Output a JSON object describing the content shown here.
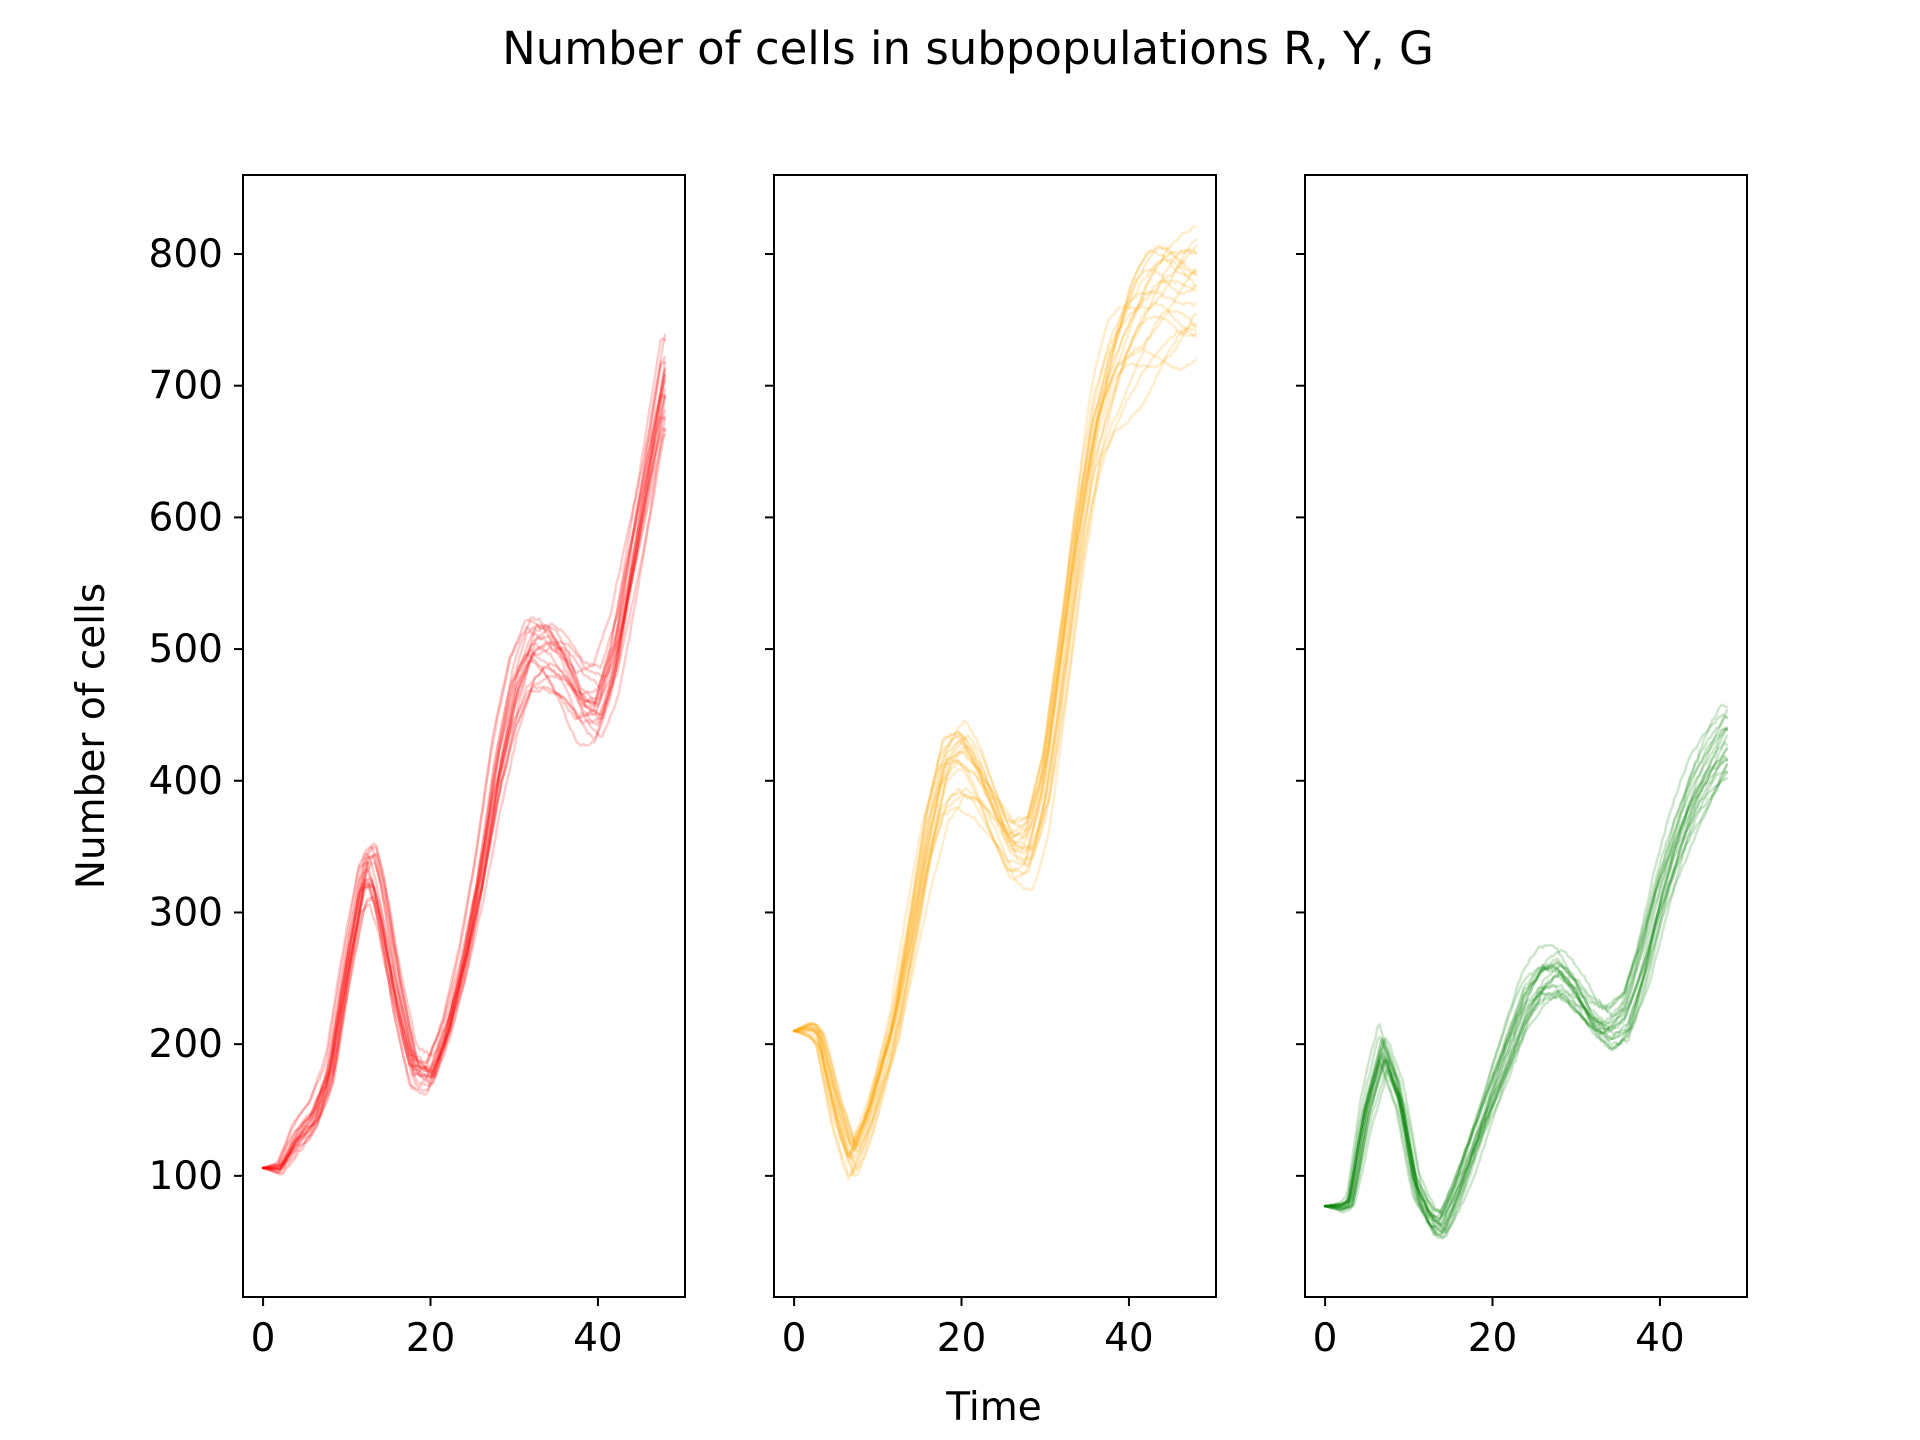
{
  "chart_data": {
    "type": "line",
    "title": "Number of cells in subpopulations R, Y, G",
    "xlabel": "Time",
    "ylabel": "Number of cells",
    "sharey": true,
    "ylim": [
      8,
      860
    ],
    "xlim": [
      -2.4,
      50.4
    ],
    "yticks": [
      100,
      200,
      300,
      400,
      500,
      600,
      700,
      800
    ],
    "xticks": [
      0,
      20,
      40
    ],
    "grid": false,
    "legend": "none",
    "line_alpha": 0.2,
    "panels": [
      {
        "subpopulation": "R",
        "color": "#ff0000",
        "runs": 20,
        "x": [
          0,
          2,
          4,
          6,
          8,
          10,
          12,
          13,
          14,
          16,
          18,
          20,
          22,
          24,
          26,
          28,
          30,
          32,
          34,
          36,
          38,
          40,
          42,
          44,
          46,
          48
        ],
        "y": [
          106,
          107,
          130,
          145,
          180,
          260,
          330,
          335,
          310,
          240,
          185,
          180,
          215,
          265,
          330,
          410,
          470,
          505,
          505,
          490,
          465,
          460,
          500,
          570,
          640,
          710
        ]
      },
      {
        "subpopulation": "Y",
        "color": "#ffa500",
        "runs": 20,
        "x": [
          0,
          2,
          3,
          5,
          7,
          9,
          12,
          14,
          16,
          18,
          20,
          22,
          24,
          26,
          28,
          30,
          32,
          34,
          36,
          38,
          40,
          42,
          44,
          46,
          48
        ],
        "y": [
          210,
          210,
          205,
          150,
          110,
          140,
          210,
          280,
          350,
          400,
          410,
          395,
          370,
          345,
          345,
          390,
          480,
          580,
          660,
          705,
          730,
          745,
          755,
          760,
          765
        ]
      },
      {
        "subpopulation": "G",
        "color": "#008000",
        "runs": 20,
        "x": [
          0,
          2,
          3,
          5,
          7,
          9,
          11,
          13,
          14,
          16,
          18,
          20,
          22,
          24,
          26,
          28,
          30,
          32,
          34,
          36,
          38,
          40,
          42,
          44,
          46,
          48
        ],
        "y": [
          77,
          77,
          80,
          150,
          195,
          160,
          90,
          65,
          62,
          90,
          125,
          160,
          195,
          230,
          250,
          255,
          240,
          220,
          210,
          220,
          260,
          310,
          350,
          385,
          410,
          430
        ]
      }
    ]
  }
}
